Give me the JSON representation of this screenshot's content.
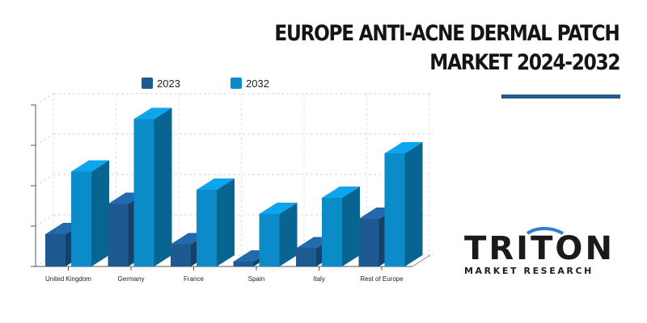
{
  "title": {
    "line1": "EUROPE ANTI-ACNE DERMAL PATCH",
    "line2": "MARKET 2024-2032"
  },
  "logo": {
    "wordmark": "TRITON",
    "tagline": "MARKET RESEARCH",
    "accent_color": "#2f7fd0"
  },
  "colors": {
    "series_2023": "#1e5a92",
    "series_2032": "#0b8cc9",
    "accent_rule": "#255a8a"
  },
  "chart_data": {
    "type": "bar",
    "categories": [
      "United Kingdom",
      "Germany",
      "France",
      "Spain",
      "Italy",
      "Rest of Europe"
    ],
    "series": [
      {
        "name": "2023",
        "values": [
          0.8,
          1.55,
          0.55,
          0.12,
          0.45,
          1.18
        ]
      },
      {
        "name": "2032",
        "values": [
          2.35,
          3.65,
          1.9,
          1.3,
          1.7,
          2.8
        ]
      }
    ],
    "ylim": [
      0,
      4
    ],
    "y_ticks_labeled": false,
    "grid": true,
    "legend": "top",
    "three_d": true
  }
}
